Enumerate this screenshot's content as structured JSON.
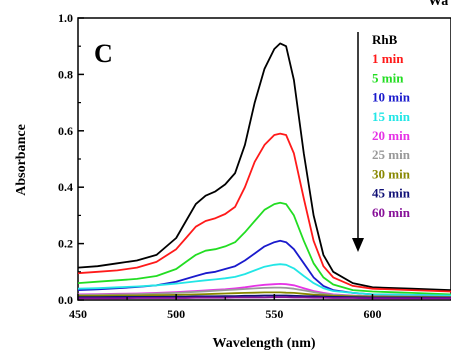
{
  "chart_data": {
    "type": "line",
    "panel_label": "C",
    "top_clip_text": "Wa",
    "xlabel": "Wavelength (nm)",
    "ylabel": "Absorbance",
    "xlim": [
      450,
      640
    ],
    "ylim": [
      0,
      1.0
    ],
    "x_ticks": [
      450,
      500,
      550,
      600
    ],
    "y_ticks": [
      0.0,
      0.2,
      0.4,
      0.6,
      0.8,
      1.0
    ],
    "y_tick_labels": [
      "0.0",
      "0.2",
      "0.4",
      "0.6",
      "0.8",
      "1.0"
    ],
    "grid": false,
    "legend_position": "top-right",
    "legend_arrow": "down",
    "x": [
      450,
      460,
      470,
      480,
      490,
      500,
      505,
      510,
      515,
      520,
      525,
      530,
      535,
      540,
      545,
      550,
      553,
      556,
      560,
      565,
      570,
      575,
      580,
      590,
      600,
      620,
      640
    ],
    "series": [
      {
        "name": "RhB",
        "color": "#000000",
        "values": [
          0.115,
          0.12,
          0.13,
          0.14,
          0.16,
          0.22,
          0.28,
          0.34,
          0.37,
          0.385,
          0.41,
          0.45,
          0.55,
          0.7,
          0.82,
          0.89,
          0.91,
          0.9,
          0.78,
          0.52,
          0.3,
          0.16,
          0.1,
          0.06,
          0.045,
          0.04,
          0.035
        ]
      },
      {
        "name": "1 min",
        "color": "#ff1a1a",
        "values": [
          0.095,
          0.1,
          0.105,
          0.115,
          0.135,
          0.18,
          0.22,
          0.26,
          0.28,
          0.29,
          0.305,
          0.33,
          0.4,
          0.49,
          0.55,
          0.585,
          0.59,
          0.585,
          0.52,
          0.36,
          0.21,
          0.12,
          0.08,
          0.05,
          0.04,
          0.035,
          0.03
        ]
      },
      {
        "name": "5 min",
        "color": "#22dd22",
        "values": [
          0.06,
          0.065,
          0.07,
          0.075,
          0.085,
          0.11,
          0.135,
          0.16,
          0.175,
          0.18,
          0.19,
          0.205,
          0.24,
          0.28,
          0.32,
          0.34,
          0.345,
          0.34,
          0.3,
          0.21,
          0.13,
          0.08,
          0.055,
          0.035,
          0.03,
          0.025,
          0.02
        ]
      },
      {
        "name": "10 min",
        "color": "#1a1acc",
        "values": [
          0.035,
          0.038,
          0.042,
          0.046,
          0.052,
          0.065,
          0.075,
          0.085,
          0.095,
          0.1,
          0.11,
          0.12,
          0.14,
          0.165,
          0.19,
          0.205,
          0.21,
          0.205,
          0.18,
          0.13,
          0.08,
          0.05,
          0.035,
          0.025,
          0.02,
          0.018,
          0.015
        ]
      },
      {
        "name": "15 min",
        "color": "#22e6e6",
        "values": [
          0.04,
          0.042,
          0.045,
          0.048,
          0.052,
          0.058,
          0.062,
          0.066,
          0.07,
          0.073,
          0.077,
          0.082,
          0.092,
          0.105,
          0.118,
          0.125,
          0.127,
          0.125,
          0.112,
          0.085,
          0.06,
          0.042,
          0.032,
          0.025,
          0.02,
          0.018,
          0.016
        ]
      },
      {
        "name": "20 min",
        "color": "#e633e6",
        "values": [
          0.02,
          0.021,
          0.022,
          0.023,
          0.025,
          0.028,
          0.03,
          0.032,
          0.034,
          0.036,
          0.038,
          0.041,
          0.045,
          0.05,
          0.054,
          0.056,
          0.057,
          0.056,
          0.052,
          0.042,
          0.032,
          0.025,
          0.02,
          0.016,
          0.014,
          0.012,
          0.011
        ]
      },
      {
        "name": "25 min",
        "color": "#999999",
        "values": [
          0.018,
          0.019,
          0.02,
          0.021,
          0.023,
          0.025,
          0.027,
          0.029,
          0.031,
          0.033,
          0.035,
          0.037,
          0.039,
          0.041,
          0.043,
          0.044,
          0.044,
          0.043,
          0.04,
          0.034,
          0.028,
          0.022,
          0.018,
          0.015,
          0.013,
          0.012,
          0.011
        ]
      },
      {
        "name": "30 min",
        "color": "#888800",
        "values": [
          0.015,
          0.015,
          0.016,
          0.016,
          0.017,
          0.018,
          0.019,
          0.02,
          0.021,
          0.022,
          0.023,
          0.024,
          0.025,
          0.026,
          0.027,
          0.027,
          0.027,
          0.026,
          0.025,
          0.022,
          0.019,
          0.017,
          0.015,
          0.013,
          0.012,
          0.011,
          0.01
        ]
      },
      {
        "name": "45 min",
        "color": "#111177",
        "values": [
          0.01,
          0.01,
          0.011,
          0.011,
          0.011,
          0.012,
          0.012,
          0.013,
          0.013,
          0.013,
          0.014,
          0.014,
          0.015,
          0.015,
          0.016,
          0.016,
          0.016,
          0.016,
          0.015,
          0.014,
          0.013,
          0.012,
          0.011,
          0.01,
          0.009,
          0.009,
          0.008
        ]
      },
      {
        "name": "60 min",
        "color": "#881199",
        "values": [
          0.006,
          0.006,
          0.006,
          0.007,
          0.007,
          0.007,
          0.007,
          0.008,
          0.008,
          0.008,
          0.008,
          0.009,
          0.009,
          0.009,
          0.009,
          0.01,
          0.01,
          0.01,
          0.009,
          0.009,
          0.008,
          0.008,
          0.007,
          0.007,
          0.006,
          0.006,
          0.006
        ]
      }
    ]
  }
}
